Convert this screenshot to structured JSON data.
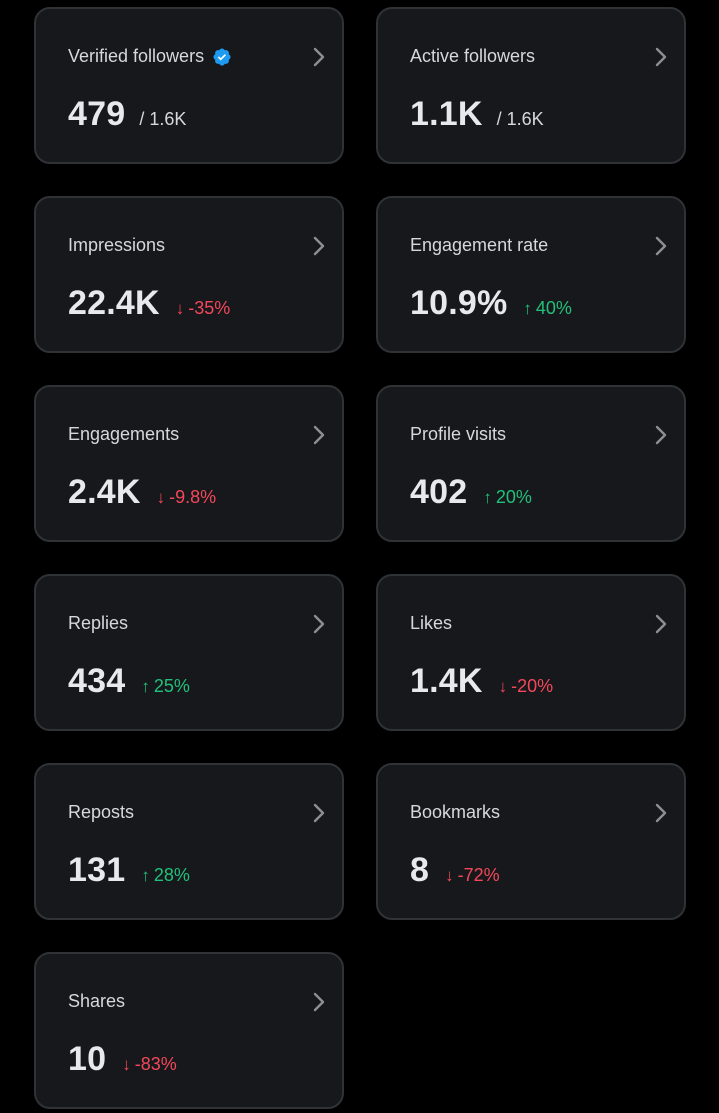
{
  "colors": {
    "background": "#000000",
    "card": "#16181c",
    "card_border": "#2f3336",
    "text": "#e7e9ea",
    "positive": "#22c07a",
    "negative": "#f4475a",
    "verified": "#1d9bf0"
  },
  "metrics": [
    {
      "title": "Verified followers",
      "value": "479",
      "sub": "/ 1.6K",
      "verified_icon": "verified-badge-icon"
    },
    {
      "title": "Active followers",
      "value": "1.1K",
      "sub": "/ 1.6K"
    },
    {
      "title": "Impressions",
      "value": "22.4K",
      "delta_arrow": "↓",
      "delta": "-35%",
      "trend": "down"
    },
    {
      "title": "Engagement rate",
      "value": "10.9%",
      "delta_arrow": "↑",
      "delta": "40%",
      "trend": "up"
    },
    {
      "title": "Engagements",
      "value": "2.4K",
      "delta_arrow": "↓",
      "delta": "-9.8%",
      "trend": "down"
    },
    {
      "title": "Profile visits",
      "value": "402",
      "delta_arrow": "↑",
      "delta": "20%",
      "trend": "up"
    },
    {
      "title": "Replies",
      "value": "434",
      "delta_arrow": "↑",
      "delta": "25%",
      "trend": "up"
    },
    {
      "title": "Likes",
      "value": "1.4K",
      "delta_arrow": "↓",
      "delta": "-20%",
      "trend": "down"
    },
    {
      "title": "Reposts",
      "value": "131",
      "delta_arrow": "↑",
      "delta": "28%",
      "trend": "up"
    },
    {
      "title": "Bookmarks",
      "value": "8",
      "delta_arrow": "↓",
      "delta": "-72%",
      "trend": "down"
    },
    {
      "title": "Shares",
      "value": "10",
      "delta_arrow": "↓",
      "delta": "-83%",
      "trend": "down"
    }
  ]
}
